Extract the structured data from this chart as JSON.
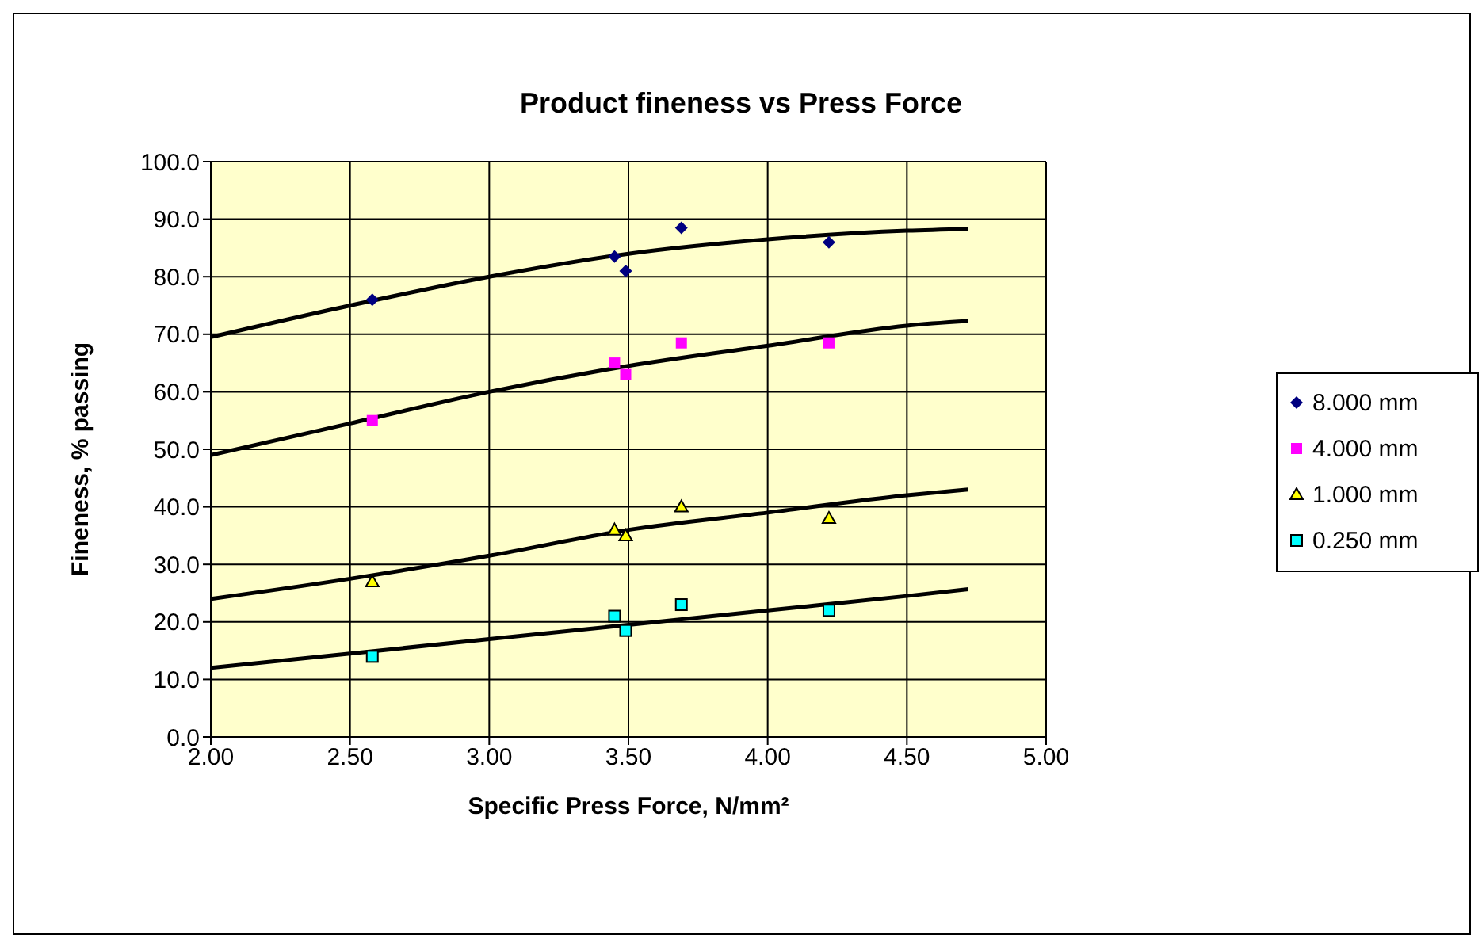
{
  "chart_data": {
    "type": "scatter",
    "title": "Product fineness vs Press Force",
    "xlabel": "Specific Press Force, N/mm²",
    "ylabel": "Fineness, % passing",
    "xlim": [
      2.0,
      5.0
    ],
    "xticks": [
      {
        "value": 2,
        "label": "2.00"
      },
      {
        "value": 2.5,
        "label": "2.50"
      },
      {
        "value": 3,
        "label": "3.00"
      },
      {
        "value": 3.5,
        "label": "3.50"
      },
      {
        "value": 4,
        "label": "4.00"
      },
      {
        "value": 4.5,
        "label": "4.50"
      },
      {
        "value": 5,
        "label": "5.00"
      }
    ],
    "ylim": [
      0,
      100
    ],
    "yticks": [
      {
        "value": 0,
        "label": "0.0"
      },
      {
        "value": 10,
        "label": "10.0"
      },
      {
        "value": 20,
        "label": "20.0"
      },
      {
        "value": 30,
        "label": "30.0"
      },
      {
        "value": 40,
        "label": "40.0"
      },
      {
        "value": 50,
        "label": "50.0"
      },
      {
        "value": 60,
        "label": "60.0"
      },
      {
        "value": 70,
        "label": "70.0"
      },
      {
        "value": 80,
        "label": "80.0"
      },
      {
        "value": 90,
        "label": "90.0"
      },
      {
        "value": 100,
        "label": "100.0"
      }
    ],
    "grid": true,
    "legend": "right",
    "series": [
      {
        "name": "8.000 mm",
        "color": "#000080",
        "marker": "diamond",
        "x": [
          2.58,
          3.45,
          3.49,
          3.69,
          4.22
        ],
        "values": [
          76,
          83.5,
          81,
          88.5,
          86
        ]
      },
      {
        "name": "4.000 mm",
        "color": "#ff00ff",
        "marker": "square",
        "x": [
          2.58,
          3.45,
          3.49,
          3.69,
          4.22
        ],
        "values": [
          55,
          65,
          63,
          68.5,
          68.5
        ]
      },
      {
        "name": "1.000 mm",
        "color": "#ffff00",
        "marker": "triangle",
        "x": [
          2.58,
          3.45,
          3.49,
          3.69,
          4.22
        ],
        "values": [
          27,
          36,
          35,
          40,
          38
        ]
      },
      {
        "name": "0.250 mm",
        "color": "#00ffff",
        "marker": "square",
        "x": [
          2.58,
          3.45,
          3.49,
          3.69,
          4.22
        ],
        "values": [
          14,
          21,
          18.5,
          23,
          22
        ]
      },
      {
        "type": "line",
        "color": "#000000",
        "marker": "none",
        "x": [
          2.0,
          2.5,
          3.0,
          3.5,
          4.0,
          4.5,
          4.72
        ],
        "values": [
          69.5,
          75,
          80,
          84,
          86.5,
          88,
          88.3
        ]
      },
      {
        "type": "line",
        "color": "#000000",
        "marker": "none",
        "x": [
          2.0,
          2.5,
          3.0,
          3.5,
          4.0,
          4.5,
          4.72
        ],
        "values": [
          49,
          54.5,
          60,
          64.5,
          68,
          71.5,
          72.3
        ]
      },
      {
        "type": "line",
        "color": "#000000",
        "marker": "none",
        "x": [
          2.0,
          2.5,
          3.0,
          3.5,
          4.0,
          4.5,
          4.72
        ],
        "values": [
          24,
          27.5,
          31.5,
          36,
          39,
          42,
          43
        ]
      },
      {
        "type": "line",
        "color": "#000000",
        "marker": "none",
        "x": [
          2.0,
          2.5,
          3.0,
          3.5,
          4.0,
          4.5,
          4.72
        ],
        "values": [
          12,
          14.5,
          17,
          19.5,
          22,
          24.5,
          25.7
        ]
      }
    ]
  }
}
